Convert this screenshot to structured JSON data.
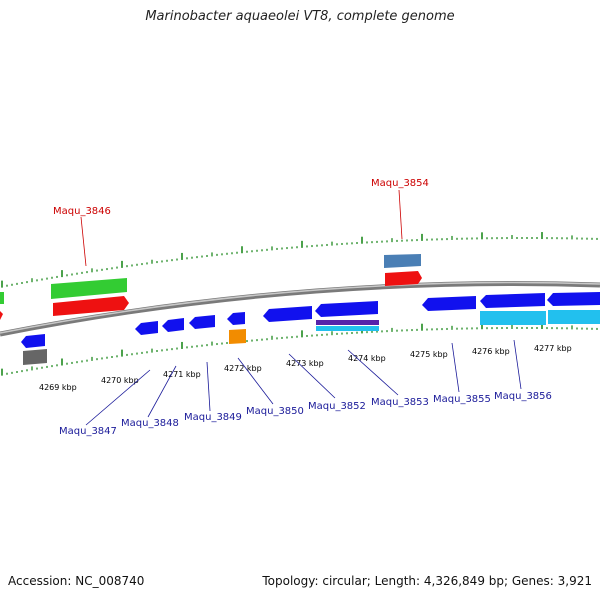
{
  "title": "Marinobacter aquaeolei VT8, complete genome",
  "accession_label": "Accession: NC_008740",
  "topology_label": "Topology: circular; Length: 4,326,849 bp; Genes: 3,921",
  "colors": {
    "backbone": "#8a8a8a",
    "tick": "#1f8a1f",
    "red": "#ee1111",
    "green": "#33cc33",
    "blue": "#1111ee",
    "steel": "#4a7fb5",
    "cyan": "#22c0ee",
    "orange": "#f28c00",
    "gray": "#666666",
    "label_top": "#cc0000",
    "label_bottom": "#1a1a99"
  },
  "scale_labels": [
    "4269 kbp",
    "4270 kbp",
    "4271 kbp",
    "4272 kbp",
    "4273 kbp",
    "4274 kbp",
    "4275 kbp",
    "4276 kbp",
    "4277 kbp"
  ],
  "top_gene_labels": [
    "Maqu_3846",
    "Maqu_3854"
  ],
  "bottom_gene_labels": [
    "Maqu_3847",
    "Maqu_3848",
    "Maqu_3849",
    "Maqu_3850",
    "Maqu_3852",
    "Maqu_3853",
    "Maqu_3855",
    "Maqu_3856"
  ]
}
